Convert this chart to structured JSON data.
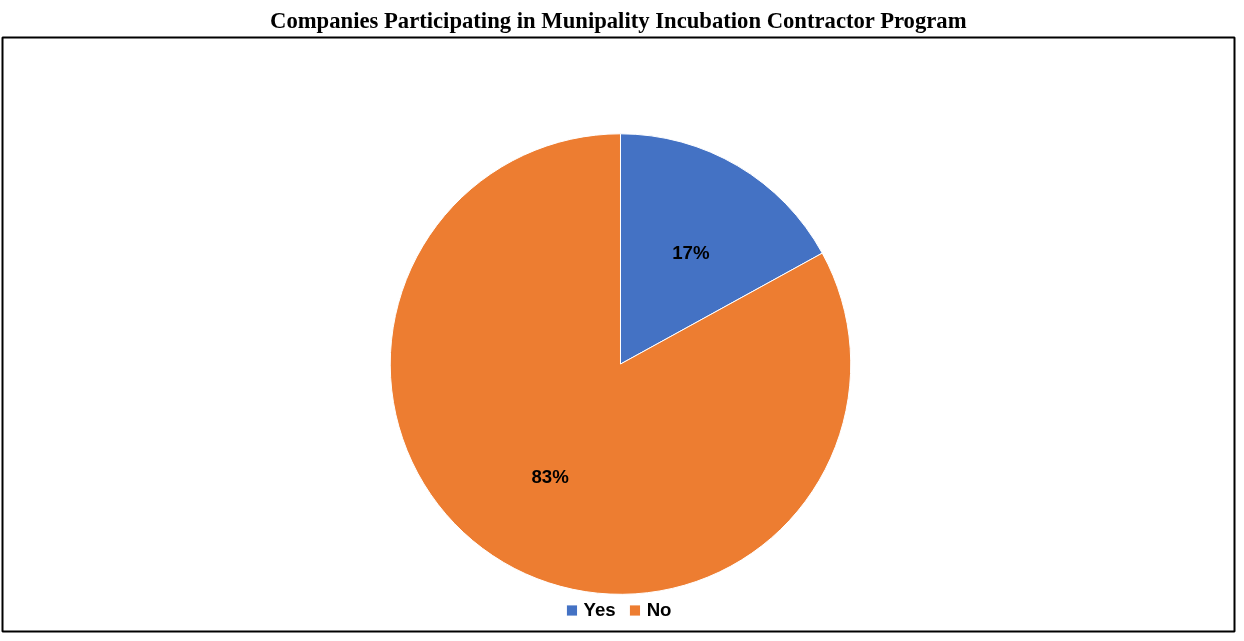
{
  "chart_data": {
    "type": "pie",
    "title": "Companies Participating in Munipality Incubation Contractor Program",
    "categories": [
      "Yes",
      "No"
    ],
    "values": [
      17,
      83
    ],
    "colors": [
      "#4472c4",
      "#ed7d31"
    ],
    "value_labels": [
      "17%",
      "83%"
    ],
    "legend": "bottom"
  }
}
